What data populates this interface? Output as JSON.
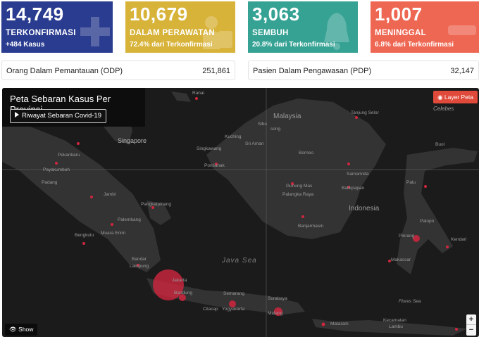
{
  "cards": [
    {
      "number": "14,749",
      "label": "TERKONFIRMASI",
      "sub": "+484 Kasus",
      "icon": "plus-icon"
    },
    {
      "number": "10,679",
      "label": "DALAM PERAWATAN",
      "sub": "72.4% dari Terkonfirmasi",
      "icon": "hospital-bed-icon"
    },
    {
      "number": "3,063",
      "label": "SEMBUH",
      "sub": "20.8% dari Terkonfirmasi",
      "icon": "bell-icon"
    },
    {
      "number": "1,007",
      "label": "MENINGGAL",
      "sub": "6.8% dari Terkonfirmasi",
      "icon": "minus-icon"
    }
  ],
  "stats": [
    {
      "label": "Orang Dalam Pemantauan (ODP)",
      "value": "251,861"
    },
    {
      "label": "Pasien Dalam Pengawasan (PDP)",
      "value": "32,147"
    }
  ],
  "map": {
    "title": "Peta Sebaran Kasus Per Provinsi",
    "history_button": "Riwayat Sebaran Covid-19",
    "layer_button": "Layer Peta",
    "show_button": "Show",
    "zoom_in": "+",
    "zoom_out": "−",
    "countries": {
      "malaysia": "Malaysia",
      "indonesia": "Indonesia"
    },
    "seas": {
      "java": "Java Sea",
      "flores": "Flores Sea",
      "celebes": "Celebes"
    },
    "places": {
      "ranai": "Ranai",
      "singapore": "Singapore",
      "pekanbaru": "Pekanbaru",
      "payakumbuh": "Payakumbuh",
      "padang": "Padang",
      "jambi": "Jambi",
      "pangkalpinang": "Pangkalpinang",
      "palembang": "Palembang",
      "bengkulu": "Bengkulu",
      "muara_enim": "Muara Enim",
      "bandar": "Bandar",
      "lampung": "Lampung",
      "jakarta": "Jakarta",
      "bandung": "Bandung",
      "cilacap": "Cilacap",
      "semarang": "Semarang",
      "yogyakarta": "Yogyakarta",
      "surabaya": "Surabaya",
      "malang": "Malang",
      "mataram": "Mataram",
      "kecamatan": "Kecamatan",
      "lambu": "Lambu",
      "sibu": "Sibu",
      "song": "song",
      "kuching": "Kuching",
      "sri_aman": "Sri Aman",
      "singkawang": "Singkawang",
      "pontianak": "Pontianak",
      "borneo": "Borneo",
      "tanjung_selor": "Tanjung Selor",
      "samarinda": "Samarinda",
      "balikpapan": "Balikpapan",
      "gunung_mas": "Gunung Mas",
      "palangka_raya": "Palangka Raya",
      "banjarmasin": "Banjarmasin",
      "buol": "Buol",
      "palu": "Palu",
      "palopo": "Palopo",
      "pinrang": "Pinrang",
      "kendari": "Kendari",
      "makassar": "Makassar"
    }
  },
  "colors": {
    "blue": "#2a3c8f",
    "yellow": "#d8b33a",
    "teal": "#36a294",
    "red": "#ee6753",
    "bubble": "#d0263e"
  }
}
